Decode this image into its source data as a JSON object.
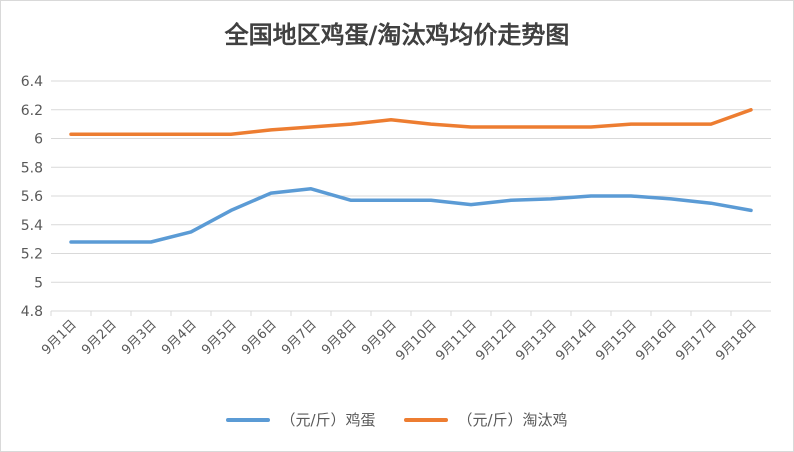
{
  "chart_data": {
    "type": "line",
    "title": "全国地区鸡蛋/淘汰鸡均价走势图",
    "xlabel": "",
    "ylabel": "",
    "categories": [
      "9月1日",
      "9月2日",
      "9月3日",
      "9月4日",
      "9月5日",
      "9月6日",
      "9月7日",
      "9月8日",
      "9月9日",
      "9月10日",
      "9月11日",
      "9月12日",
      "9月13日",
      "9月14日",
      "9月15日",
      "9月16日",
      "9月17日",
      "9月18日"
    ],
    "ylim": [
      4.8,
      6.4
    ],
    "yticks": [
      "4.8",
      "5",
      "5.2",
      "5.4",
      "5.6",
      "5.8",
      "6",
      "6.2",
      "6.4"
    ],
    "grid": true,
    "legend_position": "bottom",
    "series": [
      {
        "name": "（元/斤）鸡蛋",
        "color": "#5b9bd5",
        "values": [
          5.28,
          5.28,
          5.28,
          5.35,
          5.5,
          5.62,
          5.65,
          5.57,
          5.57,
          5.57,
          5.54,
          5.57,
          5.58,
          5.6,
          5.6,
          5.58,
          5.55,
          5.5
        ]
      },
      {
        "name": "（元/斤）淘汰鸡",
        "color": "#ed7d31",
        "values": [
          6.03,
          6.03,
          6.03,
          6.03,
          6.03,
          6.06,
          6.08,
          6.1,
          6.13,
          6.1,
          6.08,
          6.08,
          6.08,
          6.08,
          6.1,
          6.1,
          6.1,
          6.2
        ]
      }
    ]
  }
}
